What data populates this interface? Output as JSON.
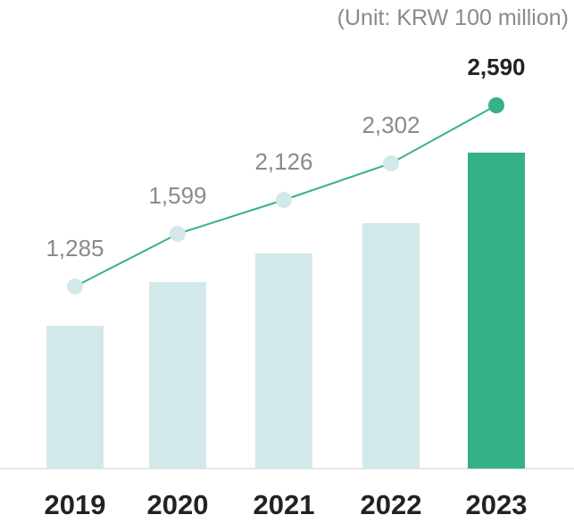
{
  "unit_label": "(Unit: KRW 100 million)",
  "colors": {
    "bar": "#d3e9e9",
    "bar_highlight": "#35b285",
    "line": "#35b285",
    "point": "#d3e9e9",
    "point_highlight": "#35b285",
    "label": "#8a8a8a",
    "label_highlight": "#222222",
    "axis": "#dddddd"
  },
  "chart_data": {
    "type": "bar",
    "title": "",
    "xlabel": "",
    "ylabel": "",
    "categories": [
      "2019",
      "2020",
      "2021",
      "2022",
      "2023"
    ],
    "values": [
      1285,
      1599,
      2126,
      2302,
      2590
    ],
    "value_labels": [
      "1,285",
      "1,599",
      "2,126",
      "2,302",
      "2,590"
    ],
    "highlight_index": 4,
    "line_overlay": true,
    "grid": false,
    "legend": "none"
  }
}
